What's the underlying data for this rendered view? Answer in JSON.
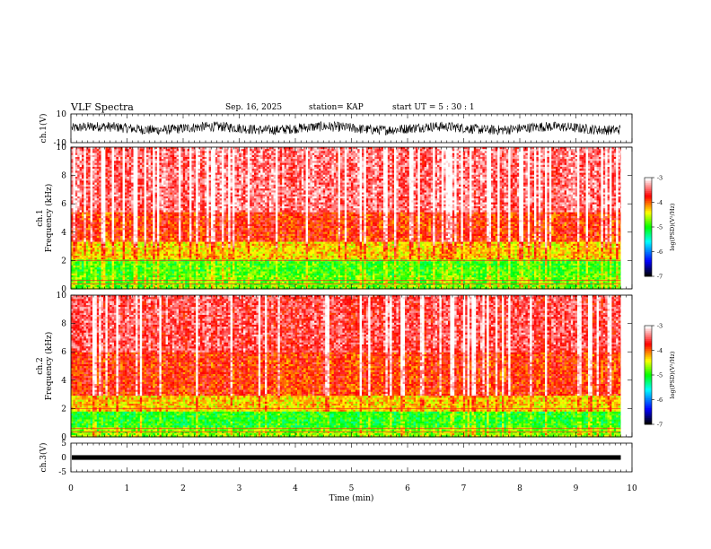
{
  "header": {
    "title": "VLF Spectra",
    "date": "Sep. 16, 2025",
    "station": "station= KAP",
    "start": "start  UT =   5 : 30 : 1"
  },
  "chart_data": [
    {
      "type": "line",
      "title": "VLF Spectra",
      "ylabel": "ch.1(V)",
      "ylim": [
        -10,
        10
      ],
      "yticks": [
        "10",
        "-10"
      ],
      "xlim": [
        0,
        10
      ],
      "description_values": "dense noise waveform, mostly between -3 and 3 V"
    },
    {
      "type": "heatmap",
      "ylabel_top": "ch.1",
      "ylabel": "Frequency (kHz)",
      "ylim": [
        0,
        10
      ],
      "yticks": [
        "0",
        "2",
        "4",
        "6",
        "8",
        "10"
      ],
      "xlim": [
        0,
        9.8
      ],
      "colorbar": {
        "label": "log(PSD)(V²/Hz)",
        "min": -7,
        "max": -3,
        "ticks": [
          "-7",
          "-6",
          "-5",
          "-4",
          "-3"
        ],
        "colors": [
          "#000000",
          "#0000ff",
          "#00ffff",
          "#00ff00",
          "#ffff00",
          "#ff0000",
          "#ffffff"
        ]
      },
      "bands": [
        {
          "f_from": 0,
          "f_to": 1,
          "level": -4.8
        },
        {
          "f_from": 1,
          "f_to": 2.2,
          "level": -4.9
        },
        {
          "f_from": 2.2,
          "f_to": 3.4,
          "level": -4.3
        },
        {
          "f_from": 3.4,
          "f_to": 5.5,
          "level": -3.8
        },
        {
          "f_from": 5.5,
          "f_to": 10,
          "level": -3.4
        }
      ]
    },
    {
      "type": "heatmap",
      "ylabel_top": "ch.2",
      "ylabel": "Frequency (kHz)",
      "ylim": [
        0,
        10
      ],
      "yticks": [
        "0",
        "2",
        "4",
        "6",
        "8",
        "10"
      ],
      "xlim": [
        0,
        9.8
      ],
      "colorbar": {
        "label": "log(PSD)(V²/Hz)",
        "min": -7,
        "max": -3,
        "ticks": [
          "-7",
          "-6",
          "-5",
          "-4",
          "-3"
        ],
        "colors": [
          "#000000",
          "#0000ff",
          "#00ffff",
          "#00ff00",
          "#ffff00",
          "#ff0000",
          "#ffffff"
        ]
      },
      "bands": [
        {
          "f_from": 0,
          "f_to": 0.8,
          "level": -4.7
        },
        {
          "f_from": 0.8,
          "f_to": 1.9,
          "level": -5.0
        },
        {
          "f_from": 1.9,
          "f_to": 3.0,
          "level": -4.3
        },
        {
          "f_from": 3.0,
          "f_to": 6.0,
          "level": -3.8
        },
        {
          "f_from": 6.0,
          "f_to": 10,
          "level": -3.5
        }
      ]
    },
    {
      "type": "line",
      "ylabel": "ch.3(V)",
      "ylim": [
        -5,
        5
      ],
      "yticks": [
        "5",
        "0",
        "-5"
      ],
      "xlim": [
        0,
        10
      ],
      "xlabel": "Time (min)",
      "xticks": [
        "0",
        "1",
        "2",
        "3",
        "4",
        "5",
        "6",
        "7",
        "8",
        "9",
        "10"
      ],
      "description_values": "nearly constant signal around 0 V"
    }
  ]
}
